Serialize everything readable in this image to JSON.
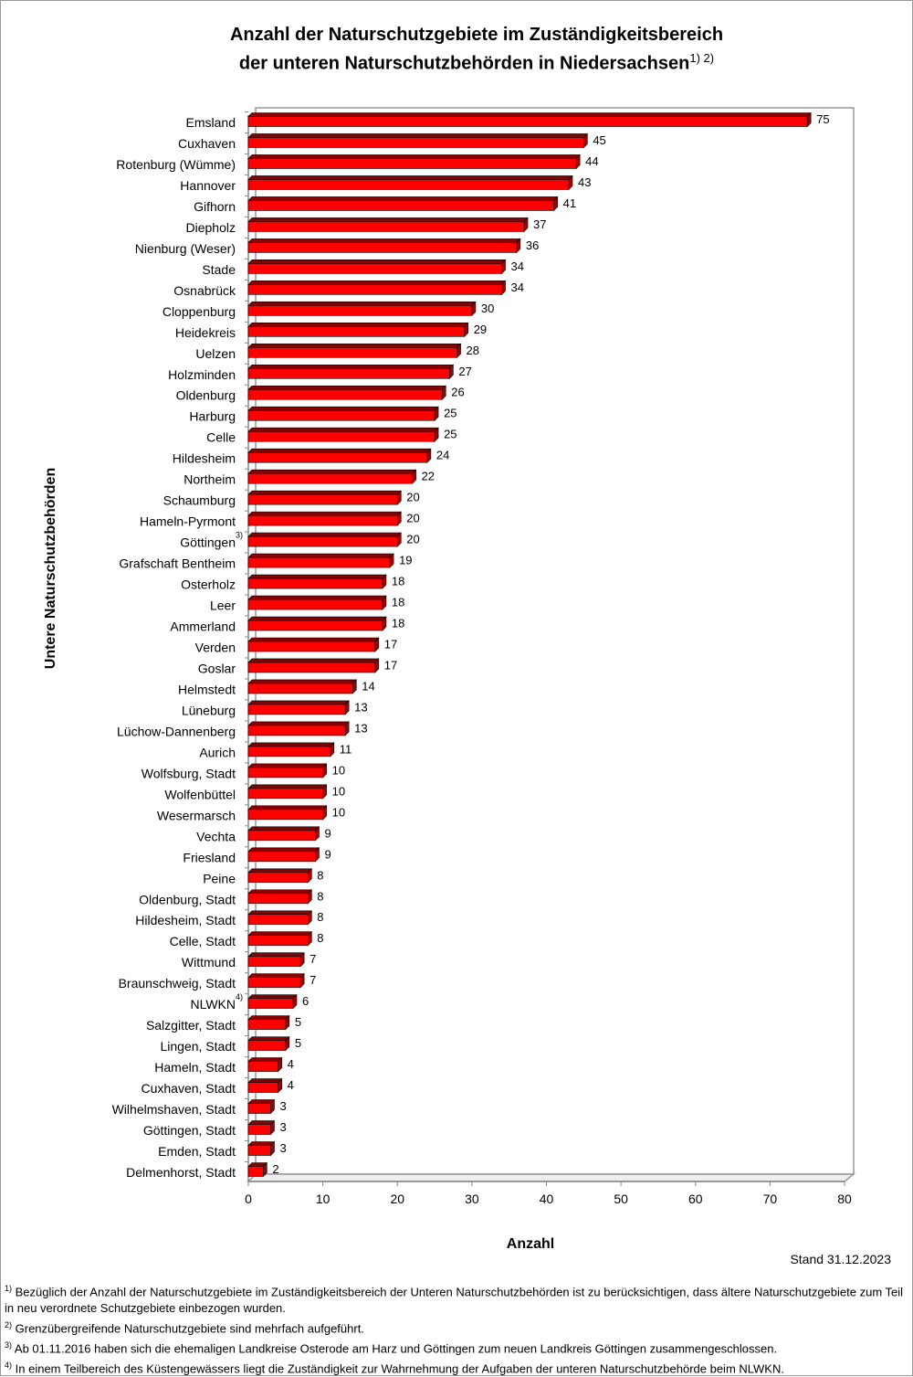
{
  "title_line1": "Anzahl der Naturschutzgebiete im Zuständigkeitsbereich",
  "title_line2": "der unteren Naturschutzbehörden in Niedersachsen",
  "title_sup": "1) 2)",
  "stand": "Stand 31.12.2023",
  "chart_data": {
    "type": "bar",
    "orientation": "horizontal",
    "xlabel": "Anzahl",
    "ylabel": "Untere Naturschutzbehörden",
    "xlim": [
      0,
      80
    ],
    "xticks": [
      "0",
      "10",
      "20",
      "30",
      "40",
      "50",
      "60",
      "70",
      "80"
    ],
    "grid": false,
    "bar_color": "#ff0000",
    "categories": [
      "Emsland",
      "Cuxhaven",
      "Rotenburg (Wümme)",
      "Hannover",
      "Gifhorn",
      "Diepholz",
      "Nienburg (Weser)",
      "Stade",
      "Osnabrück",
      "Cloppenburg",
      "Heidekreis",
      "Uelzen",
      "Holzminden",
      "Oldenburg",
      "Harburg",
      "Celle",
      "Hildesheim",
      "Northeim",
      "Schaumburg",
      "Hameln-Pyrmont",
      "Göttingen",
      "Grafschaft Bentheim",
      "Osterholz",
      "Leer",
      "Ammerland",
      "Verden",
      "Goslar",
      "Helmstedt",
      "Lüneburg",
      "Lüchow-Dannenberg",
      "Aurich",
      "Wolfsburg, Stadt",
      "Wolfenbüttel",
      "Wesermarsch",
      "Vechta",
      "Friesland",
      "Peine",
      "Oldenburg, Stadt",
      "Hildesheim, Stadt",
      "Celle, Stadt",
      "Wittmund",
      "Braunschweig, Stadt",
      "NLWKN",
      "Salzgitter, Stadt",
      "Lingen, Stadt",
      "Hameln, Stadt",
      "Cuxhaven, Stadt",
      "Wilhelmshaven, Stadt",
      "Göttingen, Stadt",
      "Emden, Stadt",
      "Delmenhorst, Stadt"
    ],
    "category_notes": {
      "Göttingen": "3)",
      "NLWKN": "4)"
    },
    "values": [
      75,
      45,
      44,
      43,
      41,
      37,
      36,
      34,
      34,
      30,
      29,
      28,
      27,
      26,
      25,
      25,
      24,
      22,
      20,
      20,
      20,
      19,
      18,
      18,
      18,
      17,
      17,
      14,
      13,
      13,
      11,
      10,
      10,
      10,
      9,
      9,
      8,
      8,
      8,
      8,
      7,
      7,
      6,
      5,
      5,
      4,
      4,
      3,
      3,
      3,
      2
    ]
  },
  "footnotes": [
    {
      "mark": "1)",
      "text": "Bezüglich der Anzahl der Naturschutzgebiete im Zuständigkeitsbereich der Unteren Naturschutzbehörden ist zu berücksichtigen, dass ältere Naturschutzgebiete zum Teil in neu verordnete Schutzgebiete einbezogen wurden."
    },
    {
      "mark": "2)",
      "text": "Grenzübergreifende Naturschutzgebiete sind mehrfach aufgeführt."
    },
    {
      "mark": "3)",
      "text": "Ab 01.11.2016 haben sich die ehemaligen Landkreise Osterode am Harz und Göttingen zum neuen Landkreis Göttingen zusammengeschlossen."
    },
    {
      "mark": "4)",
      "text": "In einem Teilbereich des Küstengewässers liegt die Zuständigkeit zur Wahrnehmung der Aufgaben der unteren Naturschutzbehörde beim NLWKN."
    }
  ]
}
